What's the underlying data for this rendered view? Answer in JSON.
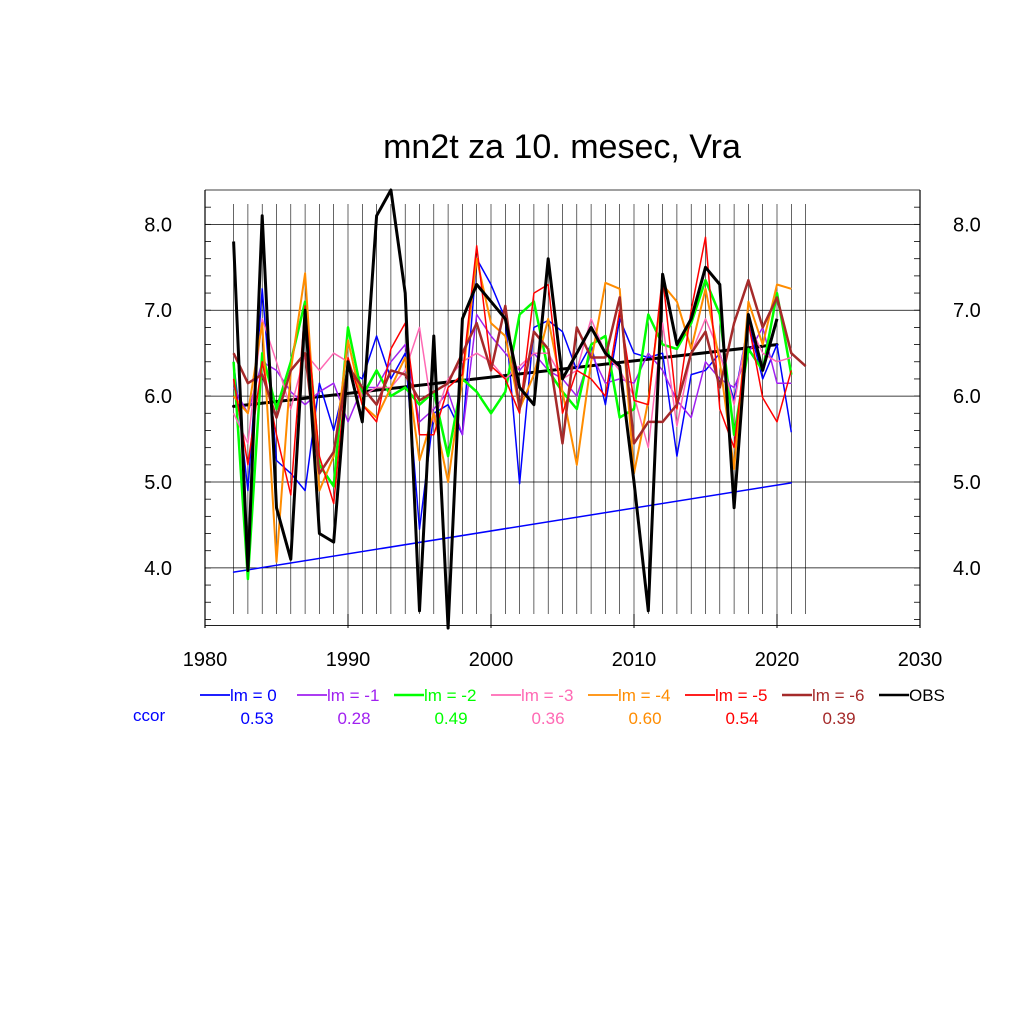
{
  "chart_data": {
    "type": "line",
    "title": "mn2t za 10. mesec, Vra",
    "xlabel": "",
    "ylabel": "",
    "xlim": [
      1980,
      2030
    ],
    "ylim": [
      3.3,
      8.4
    ],
    "x_ticks": [
      1980,
      1990,
      2000,
      2010,
      2020,
      2030
    ],
    "x_tick_labels": [
      "1980",
      "1990",
      "2000",
      "2010",
      "2020",
      "2030"
    ],
    "y_ticks": [
      4.0,
      5.0,
      6.0,
      7.0,
      8.0
    ],
    "y_tick_labels": [
      "4.0",
      "5.0",
      "6.0",
      "7.0",
      "8.0"
    ],
    "grid": true,
    "legend_position": "bottom",
    "ccor_label": "ccor",
    "series": [
      {
        "name": "lm = 0",
        "color": "#0000ff",
        "width": 1.5,
        "ccor": "0.53",
        "x": [
          1982,
          1983,
          1984,
          1985,
          1986,
          1987,
          1988,
          1989,
          1990,
          1991,
          1992,
          1993,
          1994,
          1995,
          1996,
          1997,
          1998,
          1999,
          2000,
          2001,
          2002,
          2003,
          2004,
          2005,
          2006,
          2007,
          2008,
          2009,
          2010,
          2011,
          2012,
          2013,
          2014,
          2015,
          2016,
          2017,
          2018,
          2019,
          2020,
          2021
        ],
        "values": [
          6.4,
          4.9,
          7.25,
          5.25,
          5.1,
          4.9,
          6.15,
          5.6,
          6.3,
          6.2,
          6.7,
          6.2,
          6.5,
          4.45,
          5.8,
          5.9,
          5.55,
          7.6,
          7.3,
          6.9,
          4.98,
          6.8,
          6.88,
          6.75,
          6.3,
          6.6,
          5.9,
          6.9,
          6.5,
          6.45,
          6.5,
          5.3,
          6.25,
          6.3,
          6.5,
          5.95,
          6.85,
          6.2,
          6.6,
          5.58
        ]
      },
      {
        "name": "lm = -1",
        "color": "#a020f0",
        "width": 1.5,
        "ccor": "0.28",
        "x": [
          1982,
          1983,
          1984,
          1985,
          1986,
          1987,
          1988,
          1989,
          1990,
          1991,
          1992,
          1993,
          1994,
          1995,
          1996,
          1997,
          1998,
          1999,
          2000,
          2001,
          2002,
          2003,
          2004,
          2005,
          2006,
          2007,
          2008,
          2009,
          2010,
          2011,
          2012,
          2013,
          2014,
          2015,
          2016,
          2017,
          2018,
          2019,
          2020,
          2021
        ],
        "values": [
          6.1,
          5.8,
          6.4,
          6.3,
          6.05,
          5.9,
          6.05,
          6.15,
          5.7,
          6.1,
          6.1,
          6.4,
          6.6,
          5.7,
          5.85,
          6.05,
          5.55,
          6.95,
          6.7,
          6.5,
          6.3,
          6.5,
          6.3,
          6.2,
          6.0,
          6.5,
          6.15,
          6.2,
          6.15,
          6.5,
          6.3,
          5.95,
          5.75,
          6.4,
          6.2,
          6.1,
          6.5,
          6.8,
          6.15,
          6.15
        ]
      },
      {
        "name": "lm = -2",
        "color": "#00ff00",
        "width": 2.5,
        "ccor": "0.49",
        "x": [
          1982,
          1983,
          1984,
          1985,
          1986,
          1987,
          1988,
          1989,
          1990,
          1991,
          1992,
          1993,
          1994,
          1995,
          1996,
          1997,
          1998,
          1999,
          2000,
          2001,
          2002,
          2003,
          2004,
          2005,
          2006,
          2007,
          2008,
          2009,
          2010,
          2011,
          2012,
          2013,
          2014,
          2015,
          2016,
          2017,
          2018,
          2019,
          2020,
          2021
        ],
        "values": [
          6.4,
          3.87,
          6.5,
          5.85,
          6.4,
          7.1,
          5.2,
          4.95,
          6.8,
          6.0,
          6.3,
          6.0,
          6.1,
          5.9,
          6.05,
          5.3,
          6.2,
          6.05,
          5.8,
          6.05,
          6.95,
          7.1,
          6.3,
          6.05,
          5.85,
          6.6,
          6.7,
          5.75,
          5.85,
          6.95,
          6.6,
          6.55,
          6.85,
          7.35,
          6.95,
          5.55,
          6.55,
          6.3,
          7.2,
          6.25
        ]
      },
      {
        "name": "lm = -3",
        "color": "#ff69b4",
        "width": 1.5,
        "ccor": "0.36",
        "x": [
          1982,
          1983,
          1984,
          1985,
          1986,
          1987,
          1988,
          1989,
          1990,
          1991,
          1992,
          1993,
          1994,
          1995,
          1996,
          1997,
          1998,
          1999,
          2000,
          2001,
          2002,
          2003,
          2004,
          2005,
          2006,
          2007,
          2008,
          2009,
          2010,
          2011,
          2012,
          2013,
          2014,
          2015,
          2016,
          2017,
          2018,
          2019,
          2020,
          2021
        ],
        "values": [
          5.8,
          5.45,
          6.9,
          6.4,
          5.85,
          6.5,
          6.3,
          6.5,
          6.4,
          6.0,
          6.1,
          6.1,
          6.3,
          6.8,
          5.7,
          6.2,
          6.4,
          6.5,
          6.4,
          6.2,
          6.35,
          6.5,
          6.5,
          6.2,
          6.3,
          6.9,
          6.5,
          6.3,
          6.0,
          5.4,
          6.85,
          5.65,
          6.5,
          6.9,
          6.5,
          5.9,
          6.85,
          6.5,
          6.4,
          6.45
        ]
      },
      {
        "name": "lm = -4",
        "color": "#ff8c00",
        "width": 2.0,
        "ccor": "0.60",
        "x": [
          1982,
          1983,
          1984,
          1985,
          1986,
          1987,
          1988,
          1989,
          1990,
          1991,
          1992,
          1993,
          1994,
          1995,
          1996,
          1997,
          1998,
          1999,
          2000,
          2001,
          2002,
          2003,
          2004,
          2005,
          2006,
          2007,
          2008,
          2009,
          2010,
          2011,
          2012,
          2013,
          2014,
          2015,
          2016,
          2017,
          2018,
          2019,
          2020,
          2021
        ],
        "values": [
          6.0,
          5.8,
          6.85,
          4.07,
          6.3,
          7.43,
          4.9,
          5.3,
          6.65,
          5.9,
          5.75,
          6.1,
          6.45,
          5.25,
          5.8,
          5.0,
          6.2,
          7.6,
          6.85,
          6.7,
          5.85,
          6.25,
          6.9,
          6.05,
          5.2,
          6.4,
          7.32,
          7.25,
          5.1,
          5.95,
          7.3,
          7.1,
          6.55,
          7.25,
          6.4,
          5.15,
          7.1,
          6.6,
          7.3,
          7.25
        ]
      },
      {
        "name": "lm = -5",
        "color": "#ff0000",
        "width": 1.5,
        "ccor": "0.54",
        "x": [
          1982,
          1983,
          1984,
          1985,
          1986,
          1987,
          1988,
          1989,
          1990,
          1991,
          1992,
          1993,
          1994,
          1995,
          1996,
          1997,
          1998,
          1999,
          2000,
          2001,
          2002,
          2003,
          2004,
          2005,
          2006,
          2007,
          2008,
          2009,
          2010,
          2011,
          2012,
          2013,
          2014,
          2015,
          2016,
          2017,
          2018,
          2019,
          2020,
          2021
        ],
        "values": [
          6.2,
          5.2,
          6.4,
          5.55,
          4.85,
          7.05,
          5.3,
          4.75,
          6.45,
          5.9,
          5.7,
          6.55,
          6.85,
          5.55,
          5.55,
          6.1,
          6.25,
          7.75,
          6.35,
          6.2,
          5.8,
          7.2,
          7.3,
          5.8,
          6.3,
          6.2,
          6.0,
          7.0,
          5.95,
          5.9,
          7.4,
          5.85,
          7.0,
          7.85,
          5.85,
          5.4,
          6.85,
          5.98,
          5.7,
          6.3
        ]
      },
      {
        "name": "lm = -6",
        "color": "#a52a2a",
        "width": 2.5,
        "ccor": "0.39",
        "x": [
          1982,
          1983,
          1984,
          1985,
          1986,
          1987,
          1988,
          1989,
          1990,
          1991,
          1992,
          1993,
          1994,
          1995,
          1996,
          1997,
          1998,
          1999,
          2000,
          2001,
          2002,
          2003,
          2004,
          2005,
          2006,
          2007,
          2008,
          2009,
          2010,
          2011,
          2012,
          2013,
          2014,
          2015,
          2016,
          2017,
          2018,
          2019,
          2020,
          2021,
          2022
        ],
        "values": [
          6.5,
          6.15,
          6.25,
          5.75,
          6.3,
          6.5,
          5.1,
          5.35,
          6.35,
          6.1,
          5.9,
          6.3,
          6.25,
          5.95,
          6.05,
          6.15,
          6.5,
          6.85,
          6.3,
          7.05,
          5.85,
          6.75,
          6.55,
          5.45,
          6.8,
          6.45,
          6.45,
          7.15,
          5.45,
          5.7,
          5.7,
          5.9,
          6.5,
          6.75,
          6.1,
          6.85,
          7.35,
          6.8,
          7.15,
          6.5,
          6.35
        ]
      },
      {
        "name": "OBS",
        "color": "#000000",
        "width": 3.0,
        "ccor": "",
        "x": [
          1982,
          1983,
          1984,
          1985,
          1986,
          1987,
          1988,
          1989,
          1990,
          1991,
          1992,
          1993,
          1994,
          1995,
          1996,
          1997,
          1998,
          1999,
          2000,
          2001,
          2002,
          2003,
          2004,
          2005,
          2006,
          2007,
          2008,
          2009,
          2010,
          2011,
          2012,
          2013,
          2014,
          2015,
          2016,
          2017,
          2018,
          2019,
          2020,
          2021
        ],
        "values": [
          7.8,
          3.97,
          8.1,
          4.7,
          4.1,
          7.0,
          4.4,
          4.3,
          6.4,
          5.7,
          8.1,
          8.4,
          7.2,
          3.5,
          6.7,
          3.3,
          6.9,
          7.3,
          7.1,
          6.9,
          6.1,
          5.9,
          7.6,
          6.2,
          6.5,
          6.8,
          6.5,
          6.35,
          5.0,
          3.5,
          7.42,
          6.6,
          6.9,
          7.5,
          7.3,
          4.7,
          6.95,
          6.3,
          6.9,
          null
        ]
      }
    ],
    "trend_lines": [
      {
        "name": "OBS trend",
        "color": "#000000",
        "width": 3.0,
        "x": [
          1982,
          2020
        ],
        "values": [
          5.88,
          6.6
        ]
      },
      {
        "name": "lm = 0 trend",
        "color": "#0000ff",
        "width": 1.5,
        "x": [
          1982,
          2021
        ],
        "values": [
          3.95,
          4.99
        ]
      }
    ]
  }
}
